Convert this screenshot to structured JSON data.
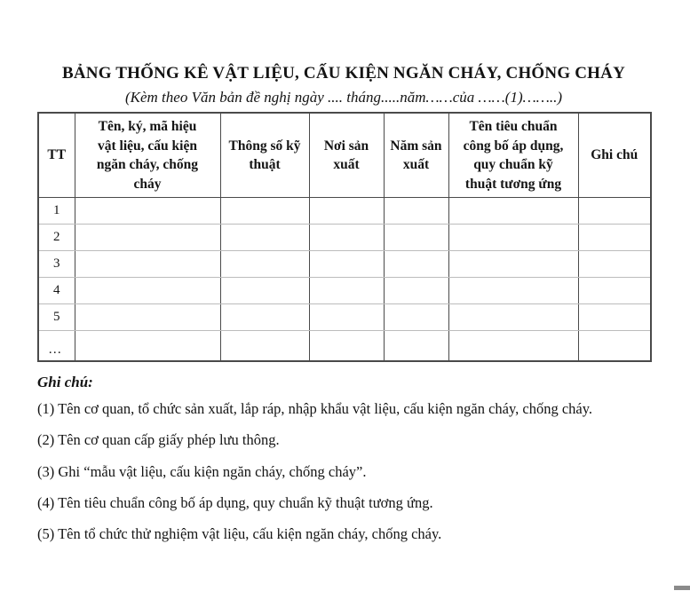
{
  "page": {
    "title": "BẢNG THỐNG KÊ VẬT LIỆU, CẤU KIỆN NGĂN CHÁY, CHỐNG CHÁY",
    "subtitle": "(Kèm theo Văn bản đề nghị ngày .... tháng.....năm……của ……(1)……..)"
  },
  "table": {
    "columns": [
      {
        "label": "TT"
      },
      {
        "label": "Tên, ký, mã hiệu\nvật liệu, cấu kiện\nngăn cháy, chống\ncháy"
      },
      {
        "label": "Thông số kỹ\nthuật"
      },
      {
        "label": "Nơi sản\nxuất"
      },
      {
        "label": "Năm sản\nxuất"
      },
      {
        "label": "Tên tiêu chuẩn\ncông bố áp dụng,\nquy chuẩn kỹ\nthuật tương ứng"
      },
      {
        "label": "Ghi chú"
      }
    ],
    "row_labels": [
      "1",
      "2",
      "3",
      "4",
      "5",
      "…"
    ],
    "empty_cell": ""
  },
  "notes": {
    "heading": "Ghi chú:",
    "items": [
      "(1) Tên cơ quan, tổ chức sản xuất, lắp ráp, nhập khẩu vật liệu, cấu kiện ngăn cháy, chống cháy.",
      "(2) Tên cơ quan cấp giấy phép lưu thông.",
      "(3) Ghi “mẫu vật liệu, cấu kiện ngăn cháy, chống cháy”.",
      "(4) Tên tiêu chuẩn công bố áp dụng, quy chuẩn kỹ thuật tương ứng.",
      "(5) Tên tổ chức thử nghiệm vật liệu, cấu kiện ngăn cháy, chống cháy."
    ]
  },
  "colors": {
    "text": "#141414",
    "border_dark": "#4a4a4a",
    "border_light": "#bcbcbc",
    "artifact": "#8a8a8a"
  }
}
